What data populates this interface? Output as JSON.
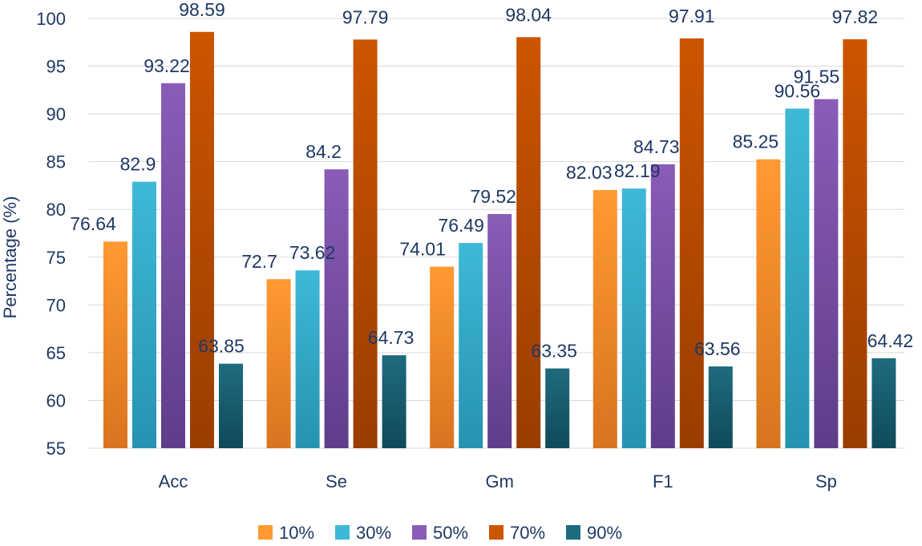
{
  "chart_data": {
    "type": "bar",
    "title": "",
    "xlabel": "",
    "ylabel": "Percentage (%)",
    "ylim": [
      55,
      100
    ],
    "yticks": [
      55,
      60,
      65,
      70,
      75,
      80,
      85,
      90,
      95,
      100
    ],
    "grid": true,
    "legend_position": "bottom",
    "categories": [
      "Acc",
      "Se",
      "Gm",
      "F1",
      "Sp"
    ],
    "series": [
      {
        "name": "10%",
        "values": [
          76.64,
          72.7,
          74.01,
          82.03,
          85.25
        ]
      },
      {
        "name": "30%",
        "values": [
          82.9,
          73.62,
          76.49,
          82.19,
          90.56
        ]
      },
      {
        "name": "50%",
        "values": [
          93.22,
          84.2,
          79.52,
          84.73,
          91.55
        ]
      },
      {
        "name": "70%",
        "values": [
          98.59,
          97.79,
          98.04,
          97.91,
          97.82
        ]
      },
      {
        "name": "90%",
        "values": [
          63.85,
          64.73,
          63.35,
          63.56,
          64.42
        ]
      }
    ]
  },
  "colors": {
    "axis_text": "#1f3864",
    "grid": "#d9d9d9",
    "series": [
      {
        "top": "#ff9a33",
        "bottom": "#d9731f"
      },
      {
        "top": "#3fb8d8",
        "bottom": "#2593b0"
      },
      {
        "top": "#8a5cb8",
        "bottom": "#5f3d8a"
      },
      {
        "top": "#cc5500",
        "bottom": "#9a3d00"
      },
      {
        "top": "#1f6b7f",
        "bottom": "#0f4a5a"
      }
    ]
  }
}
